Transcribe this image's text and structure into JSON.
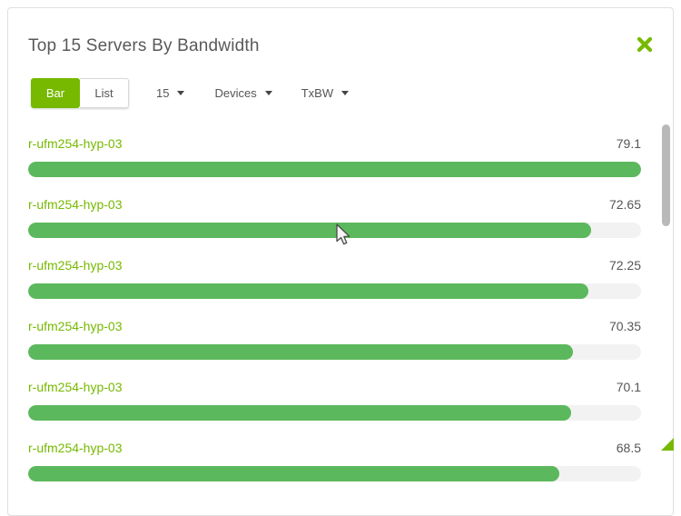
{
  "panel": {
    "title": "Top 15 Servers By Bandwidth",
    "close_icon": "x-close"
  },
  "toolbar": {
    "view_toggle": {
      "bar_label": "Bar",
      "list_label": "List",
      "active": "Bar"
    },
    "count_dropdown": {
      "selected": "15"
    },
    "entity_dropdown": {
      "selected": "Devices"
    },
    "metric_dropdown": {
      "selected": "TxBW"
    }
  },
  "chart_data": {
    "type": "bar",
    "orientation": "horizontal",
    "title": "Top 15 Servers By Bandwidth",
    "value_axis_max": 79.1,
    "legend": "none",
    "grid": false,
    "series": [
      {
        "label": "r-ufm254-hyp-03",
        "value": 79.1
      },
      {
        "label": "r-ufm254-hyp-03",
        "value": 72.65
      },
      {
        "label": "r-ufm254-hyp-03",
        "value": 72.25
      },
      {
        "label": "r-ufm254-hyp-03",
        "value": 70.35
      },
      {
        "label": "r-ufm254-hyp-03",
        "value": 70.1
      },
      {
        "label": "r-ufm254-hyp-03",
        "value": 68.5
      }
    ]
  },
  "colors": {
    "accent_green": "#76b900",
    "bar_fill_green": "#5cb85c",
    "bar_track_gray": "#f2f2f2",
    "server_label_green": "#76b900",
    "value_text_gray": "#555555",
    "title_text_gray": "#595959"
  }
}
